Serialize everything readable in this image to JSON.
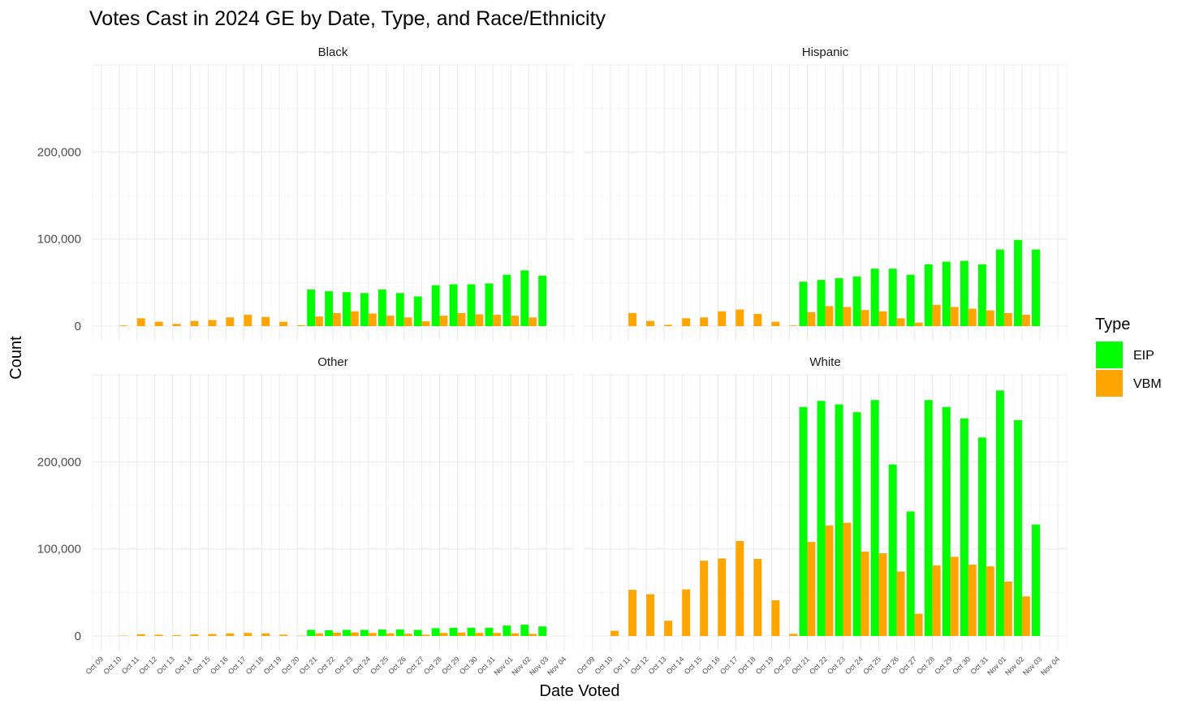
{
  "chart_data": {
    "type": "bar",
    "title": "Votes Cast in 2024 GE by Date, Type, and Race/Ethnicity",
    "xlabel": "Date Voted",
    "ylabel": "Count",
    "ylim": [
      0,
      300000
    ],
    "yticks": [
      0,
      100000,
      200000
    ],
    "ytick_labels": [
      "0",
      "100,000",
      "200,000"
    ],
    "grid": true,
    "legend": {
      "title": "Type",
      "placement": "right",
      "entries": [
        {
          "name": "EIP",
          "color": "#00FF00"
        },
        {
          "name": "VBM",
          "color": "#FFA500"
        }
      ]
    },
    "categories": [
      "Oct 09",
      "Oct 10",
      "Oct 11",
      "Oct 12",
      "Oct 13",
      "Oct 14",
      "Oct 15",
      "Oct 16",
      "Oct 17",
      "Oct 18",
      "Oct 19",
      "Oct 20",
      "Oct 21",
      "Oct 22",
      "Oct 23",
      "Oct 24",
      "Oct 25",
      "Oct 26",
      "Oct 27",
      "Oct 28",
      "Oct 29",
      "Oct 30",
      "Oct 31",
      "Nov 01",
      "Nov 02",
      "Nov 03",
      "Nov 04"
    ],
    "panels": [
      {
        "name": "Black",
        "series": [
          {
            "name": "EIP",
            "values": [
              null,
              null,
              null,
              null,
              null,
              null,
              null,
              null,
              null,
              null,
              null,
              null,
              42000,
              40000,
              39000,
              38000,
              42000,
              38000,
              34000,
              47000,
              48000,
              48000,
              49000,
              59000,
              64000,
              58000,
              null
            ]
          },
          {
            "name": "VBM",
            "values": [
              null,
              800,
              9000,
              5000,
              2500,
              6000,
              7000,
              10000,
              13000,
              10500,
              5000,
              1000,
              11000,
              15000,
              17000,
              14500,
              12000,
              10000,
              5500,
              12000,
              15000,
              13500,
              13000,
              12000,
              10000,
              null,
              null
            ]
          }
        ]
      },
      {
        "name": "Hispanic",
        "series": [
          {
            "name": "EIP",
            "values": [
              null,
              null,
              null,
              null,
              null,
              null,
              null,
              null,
              null,
              null,
              null,
              null,
              51000,
              53000,
              55000,
              57000,
              66000,
              66000,
              59000,
              71000,
              74000,
              75000,
              71000,
              88000,
              99000,
              88000,
              null
            ]
          },
          {
            "name": "VBM",
            "values": [
              null,
              null,
              15000,
              6000,
              1500,
              9000,
              10000,
              17000,
              19000,
              14000,
              5000,
              700,
              16000,
              23000,
              22000,
              18500,
              17000,
              9000,
              4000,
              24500,
              22000,
              20000,
              18000,
              15000,
              13000,
              null,
              null
            ]
          }
        ]
      },
      {
        "name": "Other",
        "series": [
          {
            "name": "EIP",
            "values": [
              null,
              null,
              null,
              null,
              null,
              null,
              null,
              null,
              null,
              null,
              null,
              null,
              7000,
              6500,
              7000,
              7000,
              7500,
              7500,
              7000,
              9000,
              9500,
              9500,
              9500,
              12000,
              13000,
              11000,
              null
            ]
          },
          {
            "name": "VBM",
            "values": [
              null,
              400,
              2000,
              1500,
              1000,
              1800,
              2300,
              3000,
              3500,
              3000,
              1500,
              400,
              3000,
              3800,
              4000,
              3500,
              3000,
              2600,
              1500,
              3500,
              4000,
              3600,
              3500,
              3000,
              2500,
              null,
              null
            ]
          }
        ]
      },
      {
        "name": "White",
        "series": [
          {
            "name": "EIP",
            "values": [
              null,
              null,
              null,
              null,
              null,
              null,
              null,
              null,
              null,
              null,
              null,
              null,
              263000,
              270000,
              266000,
              257000,
              271000,
              197000,
              143000,
              271000,
              263000,
              250000,
              228000,
              282000,
              248000,
              128000,
              null
            ]
          },
          {
            "name": "VBM",
            "values": [
              null,
              6000,
              53000,
              48000,
              17500,
              53500,
              86500,
              89000,
              109000,
              88500,
              41000,
              2500,
              108000,
              127000,
              130000,
              97000,
              95000,
              74000,
              25500,
              81000,
              91000,
              82000,
              80000,
              62500,
              45500,
              null,
              null
            ]
          }
        ]
      }
    ]
  }
}
